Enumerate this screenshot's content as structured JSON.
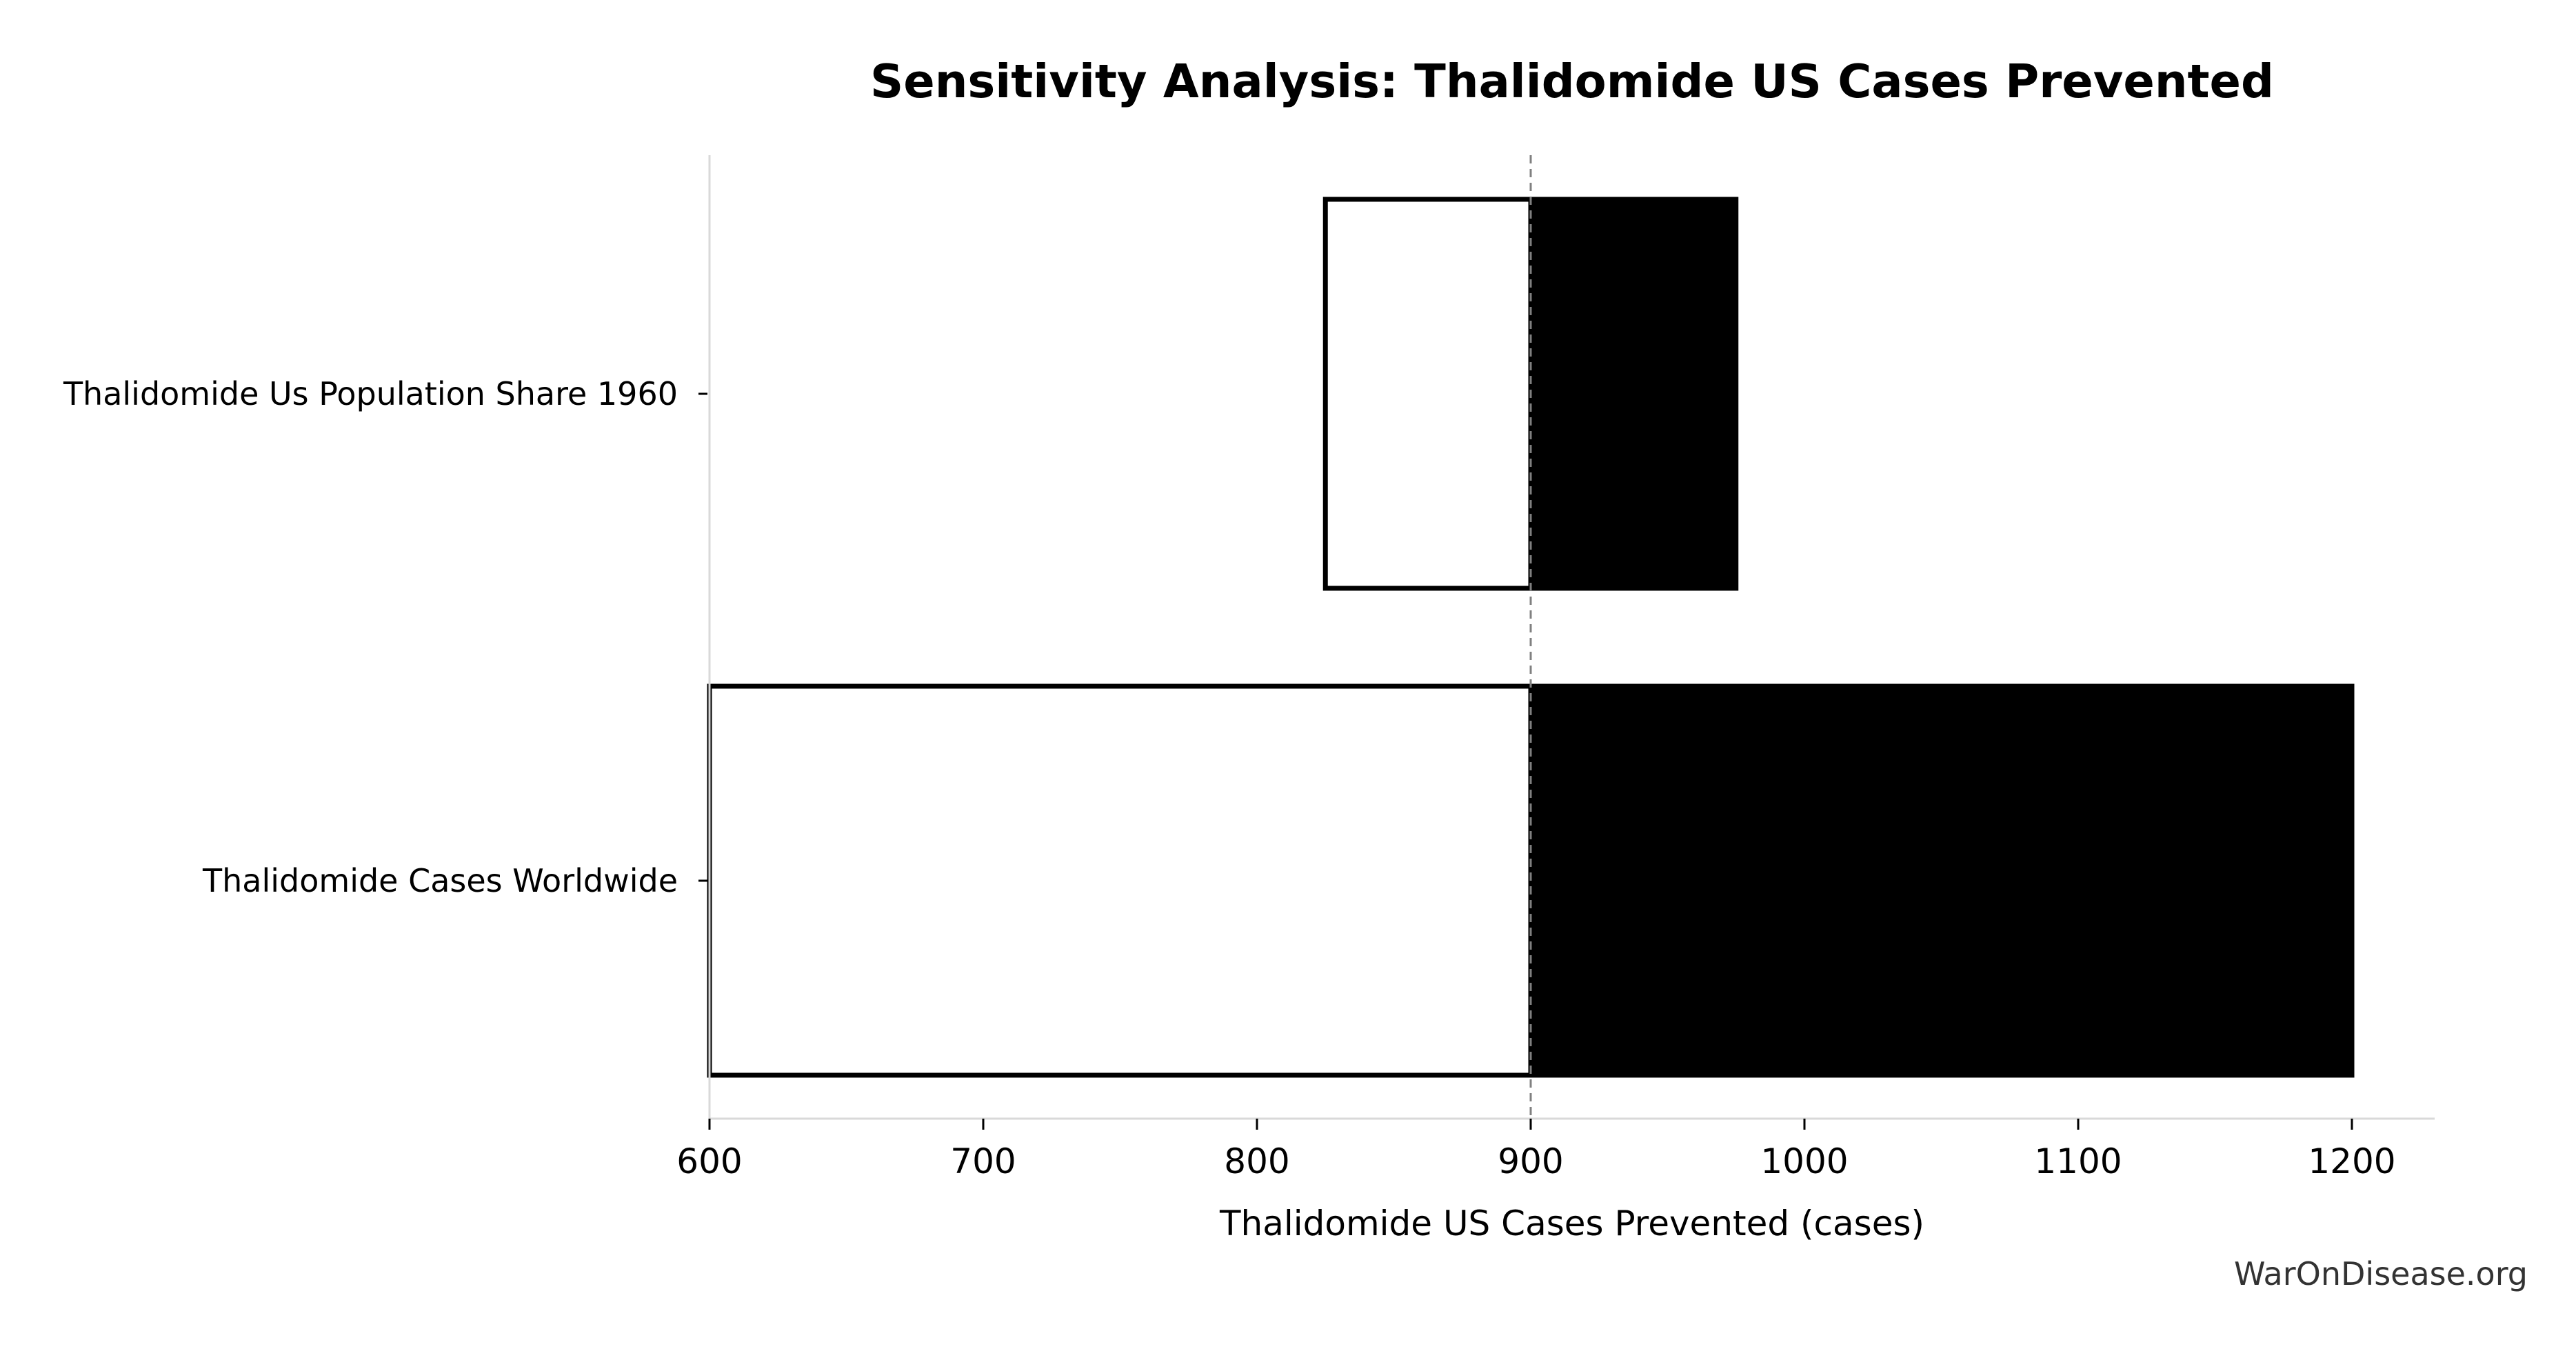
{
  "chart_data": {
    "type": "bar",
    "subtype": "tornado",
    "title": "Sensitivity Analysis: Thalidomide US Cases Prevented",
    "xlabel": "Thalidomide US Cases Prevented (cases)",
    "ylabel": "",
    "xlim": [
      600,
      1230
    ],
    "xticks": [
      600,
      700,
      800,
      900,
      1000,
      1100,
      1200
    ],
    "baseline": 900,
    "categories": [
      "Thalidomide Us Population Share 1960",
      "Thalidomide Cases Worldwide"
    ],
    "series": [
      {
        "values": [
          825,
          600
        ],
        "color": "#ffffff",
        "edgecolor": "#000000"
      },
      {
        "values": [
          975,
          1200
        ],
        "color": "#000000",
        "edgecolor": "#000000"
      }
    ],
    "grid": false
  },
  "watermark": "WarOnDisease.org"
}
